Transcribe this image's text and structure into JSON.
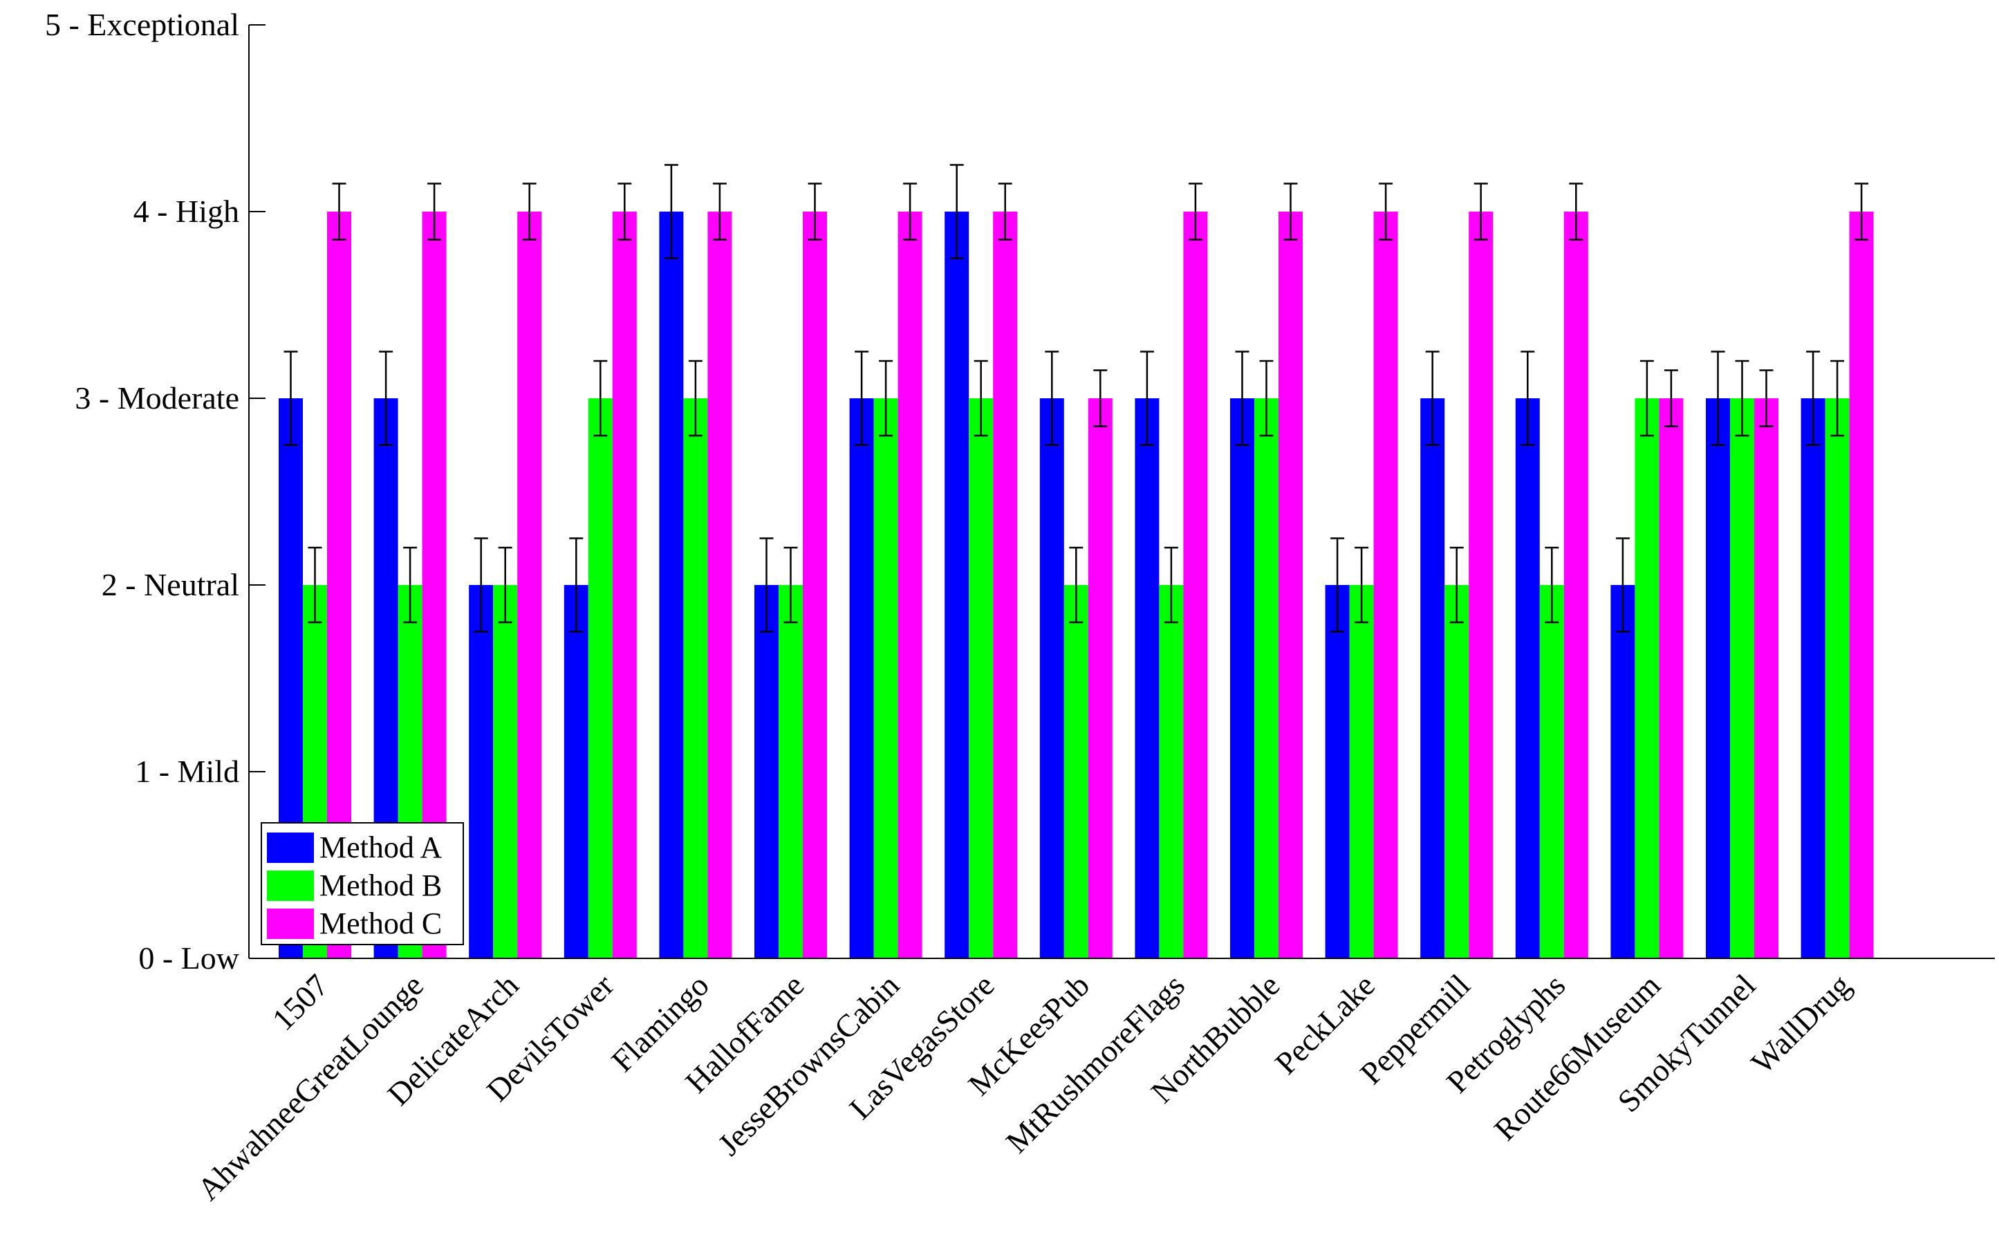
{
  "chart_data": {
    "type": "bar",
    "title": "",
    "xlabel": "",
    "ylabel": "",
    "ylim": [
      0,
      5
    ],
    "grid": false,
    "legend_position": "bottom-left",
    "y_ticks": [
      {
        "value": 0,
        "label": "0 - Low"
      },
      {
        "value": 1,
        "label": "1 - Mild"
      },
      {
        "value": 2,
        "label": "2 - Neutral"
      },
      {
        "value": 3,
        "label": "3 - Moderate"
      },
      {
        "value": 4,
        "label": "4 - High"
      },
      {
        "value": 5,
        "label": "5 - Exceptional"
      }
    ],
    "categories": [
      "1507",
      "AhwahneeGreatLounge",
      "DelicateArch",
      "DevilsTower",
      "Flamingo",
      "HallofFame",
      "JesseBrownsCabin",
      "LasVegasStore",
      "McKeesPub",
      "MtRushmoreFlags",
      "NorthBubble",
      "PeckLake",
      "Peppermill",
      "Petroglyphs",
      "Route66Museum",
      "SmokyTunnel",
      "WallDrug"
    ],
    "series": [
      {
        "name": "Method A",
        "color": "#0000ff",
        "values": [
          3,
          3,
          2,
          2,
          4,
          2,
          3,
          4,
          3,
          3,
          3,
          2,
          3,
          3,
          2,
          3,
          3
        ],
        "errors": [
          0.25,
          0.25,
          0.25,
          0.25,
          0.25,
          0.25,
          0.25,
          0.25,
          0.25,
          0.25,
          0.25,
          0.25,
          0.25,
          0.25,
          0.25,
          0.25,
          0.25
        ]
      },
      {
        "name": "Method B",
        "color": "#00ff00",
        "values": [
          2,
          2,
          2,
          3,
          3,
          2,
          3,
          3,
          2,
          2,
          3,
          2,
          2,
          2,
          3,
          3,
          3
        ],
        "errors": [
          0.2,
          0.2,
          0.2,
          0.2,
          0.2,
          0.2,
          0.2,
          0.2,
          0.2,
          0.2,
          0.2,
          0.2,
          0.2,
          0.2,
          0.2,
          0.2,
          0.2
        ]
      },
      {
        "name": "Method C",
        "color": "#ff00ff",
        "values": [
          4,
          4,
          4,
          4,
          4,
          4,
          4,
          4,
          3,
          4,
          4,
          4,
          4,
          4,
          3,
          3,
          4
        ],
        "errors": [
          0.15,
          0.15,
          0.15,
          0.15,
          0.15,
          0.15,
          0.15,
          0.15,
          0.15,
          0.15,
          0.15,
          0.15,
          0.15,
          0.15,
          0.15,
          0.15,
          0.15
        ]
      }
    ]
  }
}
